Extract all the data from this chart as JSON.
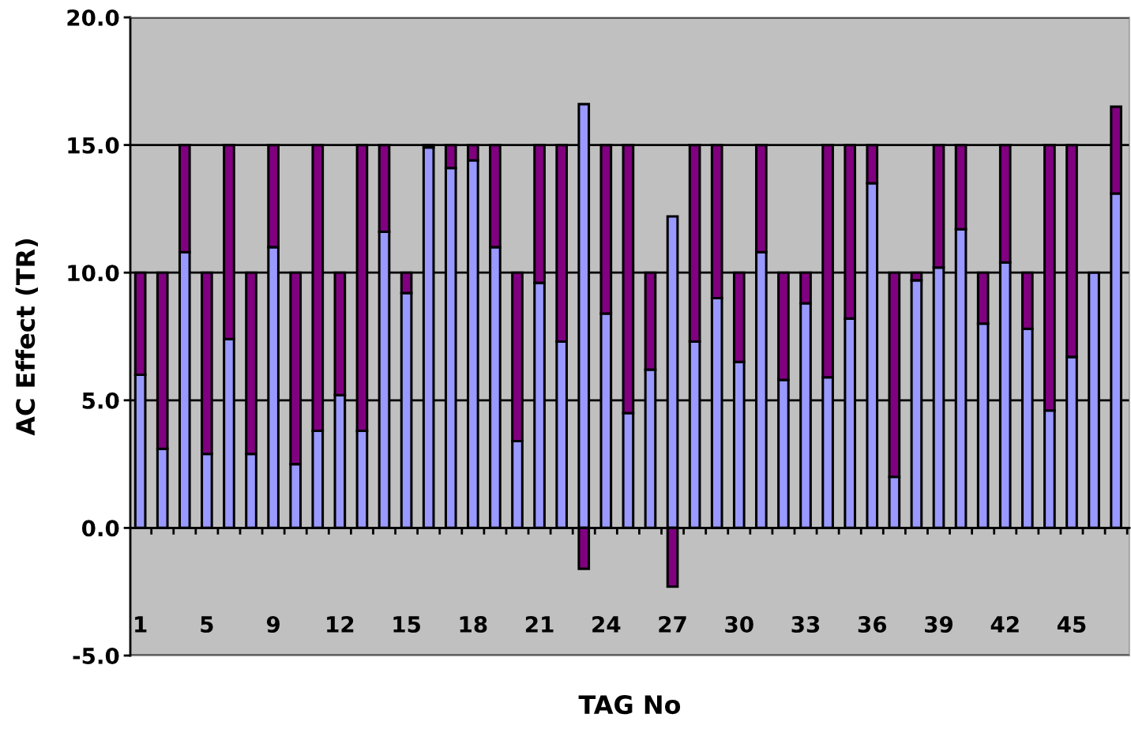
{
  "chart_data": {
    "type": "bar",
    "stacked": true,
    "xlabel": "TAG No",
    "ylabel": "AC Effect (TR)",
    "categories": [
      "1",
      null,
      null,
      "5",
      null,
      null,
      "9",
      null,
      null,
      "12",
      null,
      null,
      "15",
      null,
      null,
      "18",
      null,
      null,
      "21",
      null,
      null,
      "24",
      null,
      null,
      "27",
      null,
      null,
      "30",
      null,
      null,
      "33",
      null,
      null,
      "36",
      null,
      null,
      "39",
      null,
      null,
      "42",
      null,
      null,
      "45",
      null,
      null
    ],
    "series": [
      {
        "color": "#9999ff",
        "values": [
          6.0,
          3.1,
          10.8,
          2.9,
          7.4,
          2.9,
          11.0,
          2.5,
          3.8,
          5.2,
          3.8,
          11.6,
          9.2,
          14.9,
          14.1,
          14.4,
          11.0,
          3.4,
          9.6,
          7.3,
          16.6,
          8.4,
          4.5,
          6.2,
          12.2,
          7.3,
          9.0,
          6.5,
          10.8,
          5.8,
          8.8,
          5.9,
          8.2,
          13.5,
          2.0,
          9.7,
          10.2,
          11.7,
          8.0,
          10.4,
          7.8,
          4.6,
          6.7,
          10.0,
          13.1
        ]
      },
      {
        "color": "#800080",
        "values": [
          4.0,
          6.9,
          4.2,
          7.1,
          7.6,
          7.1,
          4.0,
          7.5,
          11.2,
          4.8,
          11.2,
          3.4,
          0.8,
          0.1,
          0.9,
          0.6,
          4.0,
          6.6,
          5.4,
          7.7,
          -1.6,
          6.6,
          10.5,
          3.8,
          -2.3,
          7.7,
          6.0,
          3.5,
          4.2,
          4.2,
          1.2,
          9.1,
          6.8,
          1.5,
          8.0,
          0.3,
          4.8,
          3.3,
          2.0,
          4.6,
          2.2,
          10.4,
          8.3,
          null,
          3.4
        ]
      }
    ],
    "ylim": [
      -5,
      20
    ],
    "yticks": [
      {
        "value": -5,
        "label": "-5.0"
      },
      {
        "value": 0,
        "label": "0.0"
      },
      {
        "value": 5,
        "label": "5.0"
      },
      {
        "value": 10,
        "label": "10.0"
      },
      {
        "value": 15,
        "label": "15.0"
      },
      {
        "value": 20,
        "label": "20.0"
      }
    ],
    "grid": "y"
  }
}
